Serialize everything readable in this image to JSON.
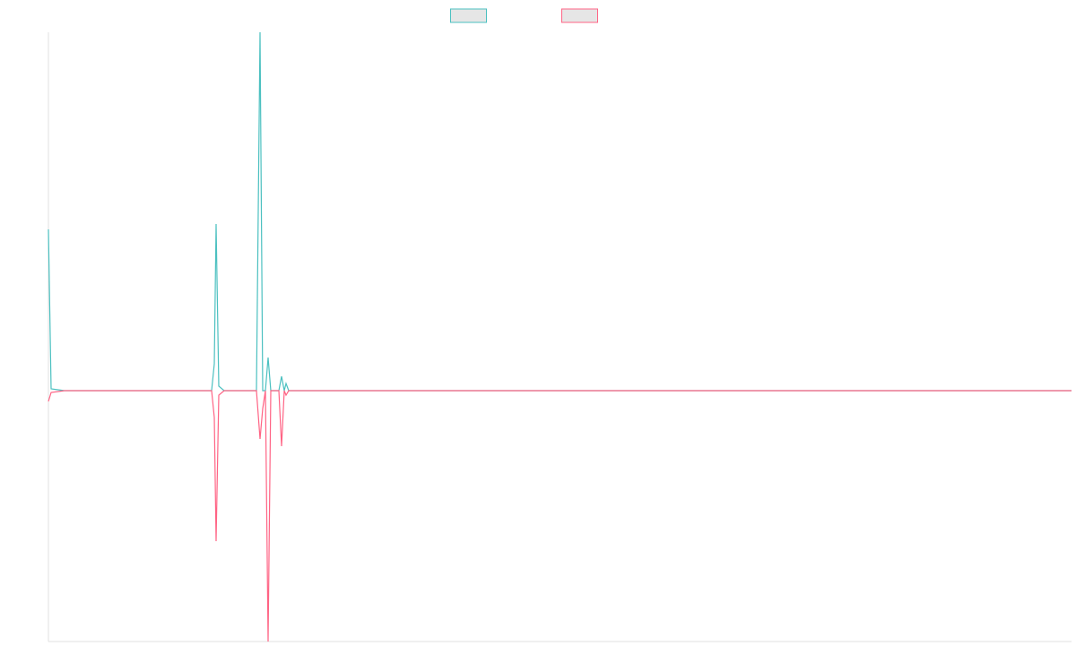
{
  "chart_data": {
    "type": "line",
    "x": [
      0,
      3,
      18,
      182,
      185,
      187,
      190,
      196,
      232,
      236,
      239,
      242,
      245,
      248,
      257,
      260,
      263,
      265,
      268,
      1141
    ],
    "xlim": [
      0,
      1141
    ],
    "ylim": [
      -280,
      400
    ],
    "legend": "top",
    "series": [
      {
        "color": "#4bc0c0",
        "values": [
          180,
          2,
          0,
          0,
          30,
          186,
          5,
          0,
          0,
          400,
          0,
          0,
          37,
          0,
          0,
          16,
          0,
          8,
          0,
          0
        ]
      },
      {
        "color": "#ff6384",
        "values": [
          -12,
          -2,
          0,
          0,
          -30,
          -168,
          -5,
          0,
          0,
          -54,
          -20,
          0,
          -280,
          0,
          0,
          -62,
          0,
          -5,
          0,
          0
        ]
      }
    ]
  }
}
